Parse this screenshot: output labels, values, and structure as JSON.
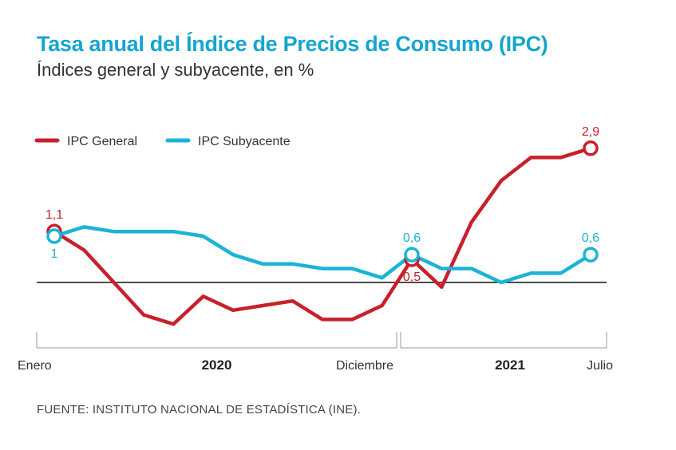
{
  "header": {
    "title": "Tasa anual del Índice de Precios de Consumo (IPC)",
    "subtitle": "Índices general y subyacente, en %"
  },
  "source": "FUENTE: INSTITUTO NACIONAL DE ESTADÍSTICA (INE).",
  "colors": {
    "general": "#c8202a",
    "subyacente": "#1ab4d6",
    "title": "#12a6cf",
    "axis": "#999999",
    "zero_line": "#111111"
  },
  "chart_data": {
    "type": "line",
    "title": "Tasa anual del Índice de Precios de Consumo (IPC)",
    "subtitle": "Índices general y subyacente, en %",
    "x": [
      "2020-01",
      "2020-02",
      "2020-03",
      "2020-04",
      "2020-05",
      "2020-06",
      "2020-07",
      "2020-08",
      "2020-09",
      "2020-10",
      "2020-11",
      "2020-12",
      "2021-01",
      "2021-02",
      "2021-03",
      "2021-04",
      "2021-05",
      "2021-06",
      "2021-07"
    ],
    "tick_labels": [
      {
        "x": "2020-01",
        "label": "Enero"
      },
      {
        "x": "2020-12",
        "label": "Diciembre"
      },
      {
        "x": "2021-07",
        "label": "Julio"
      }
    ],
    "year_labels": [
      {
        "label": "2020",
        "from": "2020-01",
        "to": "2020-12"
      },
      {
        "label": "2021",
        "from": "2021-01",
        "to": "2021-07"
      }
    ],
    "series": [
      {
        "name": "IPC General",
        "color": "#c8202a",
        "values": [
          1.1,
          0.7,
          0.0,
          -0.7,
          -0.9,
          -0.3,
          -0.6,
          -0.5,
          -0.4,
          -0.8,
          -0.8,
          -0.5,
          0.5,
          -0.1,
          1.3,
          2.2,
          2.7,
          2.7,
          2.9
        ]
      },
      {
        "name": "IPC Subyacente",
        "color": "#1ab4d6",
        "values": [
          1.0,
          1.2,
          1.1,
          1.1,
          1.1,
          1.0,
          0.6,
          0.4,
          0.4,
          0.3,
          0.3,
          0.1,
          0.6,
          0.3,
          0.3,
          0.0,
          0.2,
          0.2,
          0.6
        ]
      }
    ],
    "annotations": [
      {
        "series": 0,
        "index": 0,
        "label": "1,1",
        "position": "above"
      },
      {
        "series": 1,
        "index": 0,
        "label": "1",
        "position": "below"
      },
      {
        "series": 1,
        "index": 12,
        "label": "0,6",
        "position": "above"
      },
      {
        "series": 0,
        "index": 12,
        "label": "0,5",
        "position": "below"
      },
      {
        "series": 0,
        "index": 18,
        "label": "2,9",
        "position": "above"
      },
      {
        "series": 1,
        "index": 18,
        "label": "0,6",
        "position": "above"
      }
    ],
    "ylim": [
      -1.5,
      3.5
    ],
    "zero_line": true,
    "grid": false,
    "legend": "top-left"
  }
}
